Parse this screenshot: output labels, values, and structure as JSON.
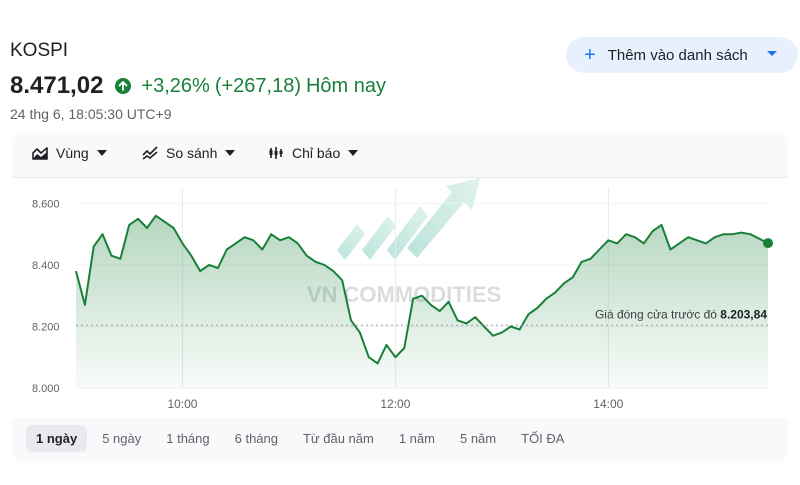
{
  "header": {
    "ticker": "KOSPI",
    "price": "8.471,02",
    "change_percent": "+3,26%",
    "change_abs": "(+267,18)",
    "change_period": "Hôm nay",
    "timestamp": "24 thg 6, 18:05:30 UTC+9",
    "add_button": "Thêm vào danh sách"
  },
  "toolbar": {
    "area": "Vùng",
    "compare": "So sánh",
    "indicators": "Chỉ báo"
  },
  "watermark": "VN COMMODITIES",
  "ranges": [
    "1 ngày",
    "5 ngày",
    "1 tháng",
    "6 tháng",
    "Từ đầu năm",
    "1 năm",
    "5 năm",
    "TỐI ĐA"
  ],
  "active_range": "1 ngày",
  "colors": {
    "up": "#188038",
    "accent": "#1a73e8",
    "button_bg": "#e8f0fe"
  },
  "chart_data": {
    "type": "area",
    "x_ticks": [
      "10:00",
      "12:00",
      "14:00"
    ],
    "y_ticks": [
      "8.600",
      "8.400",
      "8.200",
      "8.000"
    ],
    "ylim": [
      8000,
      8650
    ],
    "x": [
      "09:00",
      "09:05",
      "09:10",
      "09:15",
      "09:20",
      "09:25",
      "09:30",
      "09:35",
      "09:40",
      "09:45",
      "09:50",
      "09:55",
      "10:00",
      "10:05",
      "10:10",
      "10:15",
      "10:20",
      "10:25",
      "10:30",
      "10:35",
      "10:40",
      "10:45",
      "10:50",
      "10:55",
      "11:00",
      "11:05",
      "11:10",
      "11:15",
      "11:20",
      "11:25",
      "11:30",
      "11:35",
      "11:40",
      "11:45",
      "11:50",
      "11:55",
      "12:00",
      "12:05",
      "12:10",
      "12:15",
      "12:20",
      "12:25",
      "12:30",
      "12:35",
      "12:40",
      "12:45",
      "12:50",
      "12:55",
      "13:00",
      "13:05",
      "13:10",
      "13:15",
      "13:20",
      "13:25",
      "13:30",
      "13:35",
      "13:40",
      "13:45",
      "13:50",
      "13:55",
      "14:00",
      "14:05",
      "14:10",
      "14:15",
      "14:20",
      "14:25",
      "14:30",
      "14:35",
      "14:40",
      "14:45",
      "14:50",
      "14:55",
      "15:00",
      "15:05",
      "15:10",
      "15:15",
      "15:20",
      "15:30"
    ],
    "values": [
      8380,
      8270,
      8460,
      8500,
      8430,
      8420,
      8530,
      8550,
      8520,
      8560,
      8540,
      8520,
      8470,
      8430,
      8380,
      8400,
      8390,
      8450,
      8470,
      8490,
      8480,
      8450,
      8500,
      8480,
      8490,
      8470,
      8430,
      8410,
      8400,
      8380,
      8350,
      8220,
      8180,
      8100,
      8080,
      8140,
      8100,
      8130,
      8290,
      8300,
      8270,
      8250,
      8280,
      8220,
      8210,
      8230,
      8200,
      8170,
      8180,
      8200,
      8190,
      8240,
      8260,
      8290,
      8310,
      8340,
      8360,
      8410,
      8420,
      8450,
      8480,
      8470,
      8500,
      8490,
      8470,
      8510,
      8530,
      8450,
      8470,
      8490,
      8480,
      8470,
      8490,
      8500,
      8500,
      8505,
      8500,
      8471.02
    ],
    "reference_line": {
      "label": "Giá đóng cửa trước đó",
      "value": "8.203,84",
      "y": 8203.84
    }
  }
}
